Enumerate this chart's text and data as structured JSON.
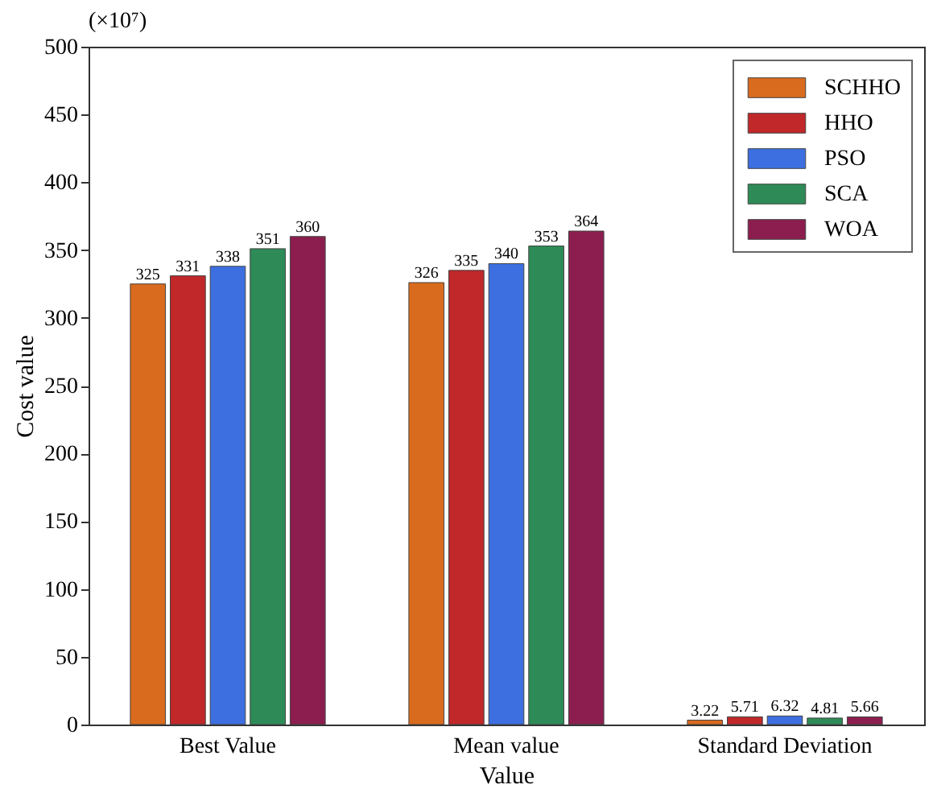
{
  "chart_data": {
    "type": "bar",
    "xlabel": "Value",
    "ylabel": "Cost value",
    "annotations": [
      "(×10⁷)"
    ],
    "categories": [
      "Best Value",
      "Mean value",
      "Standard Deviation"
    ],
    "series": [
      {
        "name": "SCHHO",
        "color": "#d96b1e",
        "values": [
          325,
          326,
          3.22
        ]
      },
      {
        "name": "HHO",
        "color": "#c0282a",
        "values": [
          331,
          335,
          5.71
        ]
      },
      {
        "name": "PSO",
        "color": "#3d6fe0",
        "values": [
          338,
          340,
          6.32
        ]
      },
      {
        "name": "SCA",
        "color": "#2e8b57",
        "values": [
          351,
          353,
          4.81
        ]
      },
      {
        "name": "WOA",
        "color": "#8b1e4e",
        "values": [
          360,
          364,
          5.66
        ]
      }
    ],
    "ylim": [
      0,
      500
    ],
    "yticks": [
      0,
      50,
      100,
      150,
      200,
      250,
      300,
      350,
      400,
      450,
      500
    ],
    "data_labels": true,
    "legend": "top right"
  }
}
